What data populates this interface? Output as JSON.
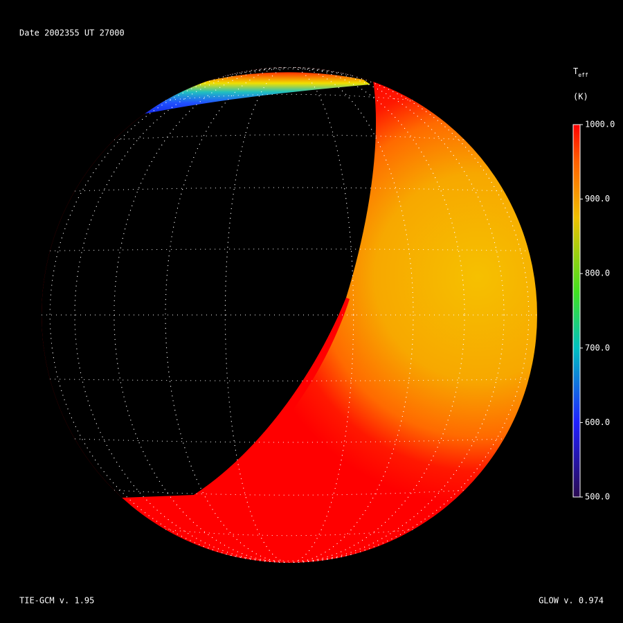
{
  "header": {
    "text": "Date 2002355  UT 27000"
  },
  "colorbar": {
    "title": "T",
    "title_subscript": "eff",
    "unit": "(K)",
    "range": [
      500,
      1000
    ],
    "ticks": [
      {
        "value": 1000,
        "label": "1000.0"
      },
      {
        "value": 900,
        "label": "900.0"
      },
      {
        "value": 800,
        "label": "800.0"
      },
      {
        "value": 700,
        "label": "700.0"
      },
      {
        "value": 600,
        "label": "600.0"
      },
      {
        "value": 500,
        "label": "500.0"
      }
    ]
  },
  "footer": {
    "left": "TIE-GCM v. 1.95",
    "right": "GLOW v. 0.974"
  }
}
